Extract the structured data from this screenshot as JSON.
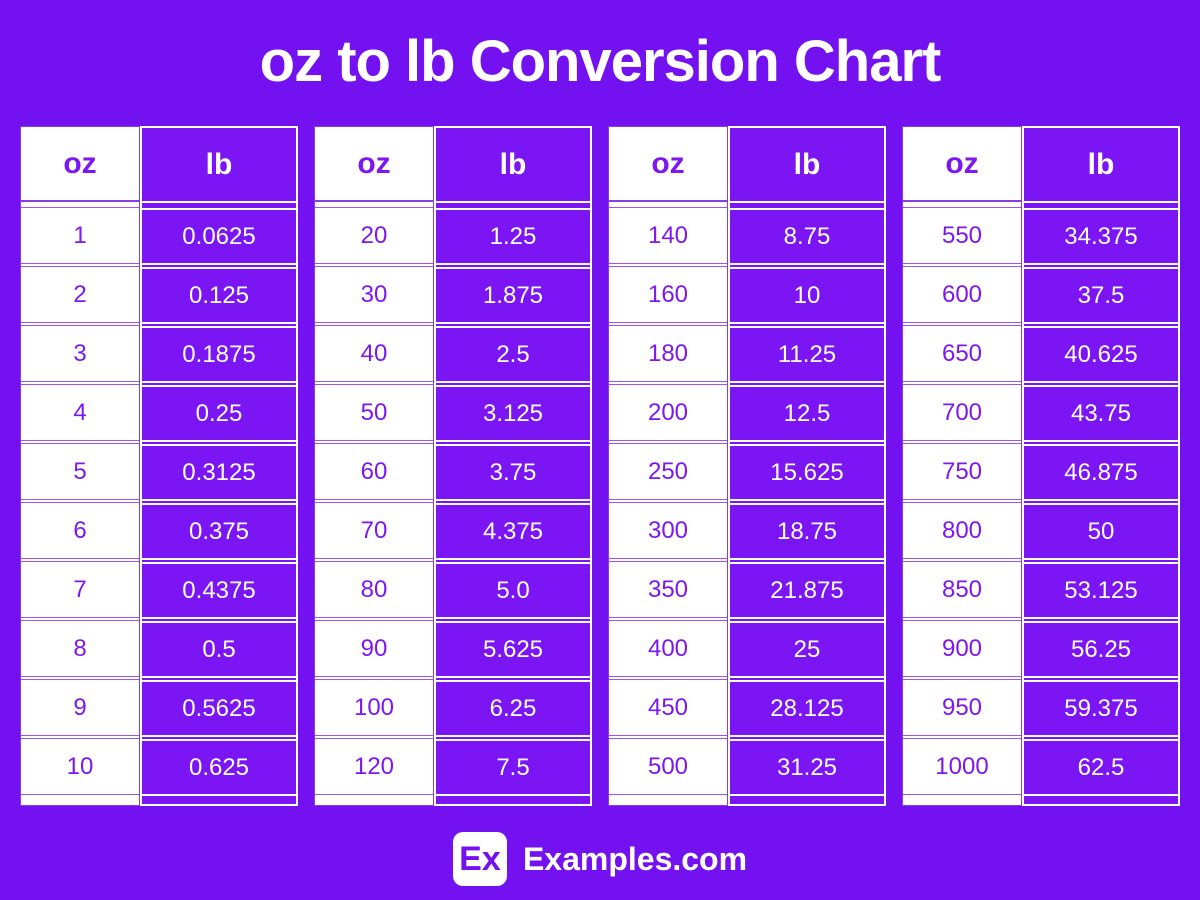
{
  "title": "oz to lb Conversion Chart",
  "footer": {
    "logo_text": "Ex",
    "site_name": "Examples.com"
  },
  "colors": {
    "background": "#7411F1",
    "lb_cell_purple": "#7B15F3",
    "text_purple": "#7D17F2",
    "white": "#FFFFFF"
  },
  "tables": [
    {
      "oz_header": "oz",
      "lb_header": "lb",
      "rows": [
        {
          "oz": "1",
          "lb": "0.0625"
        },
        {
          "oz": "2",
          "lb": "0.125"
        },
        {
          "oz": "3",
          "lb": "0.1875"
        },
        {
          "oz": "4",
          "lb": "0.25"
        },
        {
          "oz": "5",
          "lb": "0.3125"
        },
        {
          "oz": "6",
          "lb": "0.375"
        },
        {
          "oz": "7",
          "lb": "0.4375"
        },
        {
          "oz": "8",
          "lb": "0.5"
        },
        {
          "oz": "9",
          "lb": "0.5625"
        },
        {
          "oz": "10",
          "lb": "0.625"
        }
      ]
    },
    {
      "oz_header": "oz",
      "lb_header": "lb",
      "rows": [
        {
          "oz": "20",
          "lb": "1.25"
        },
        {
          "oz": "30",
          "lb": "1.875"
        },
        {
          "oz": "40",
          "lb": "2.5"
        },
        {
          "oz": "50",
          "lb": "3.125"
        },
        {
          "oz": "60",
          "lb": "3.75"
        },
        {
          "oz": "70",
          "lb": "4.375"
        },
        {
          "oz": "80",
          "lb": "5.0"
        },
        {
          "oz": "90",
          "lb": "5.625"
        },
        {
          "oz": "100",
          "lb": "6.25"
        },
        {
          "oz": "120",
          "lb": "7.5"
        }
      ]
    },
    {
      "oz_header": "oz",
      "lb_header": "lb",
      "rows": [
        {
          "oz": "140",
          "lb": "8.75"
        },
        {
          "oz": "160",
          "lb": "10"
        },
        {
          "oz": "180",
          "lb": "11.25"
        },
        {
          "oz": "200",
          "lb": "12.5"
        },
        {
          "oz": "250",
          "lb": "15.625"
        },
        {
          "oz": "300",
          "lb": "18.75"
        },
        {
          "oz": "350",
          "lb": "21.875"
        },
        {
          "oz": "400",
          "lb": "25"
        },
        {
          "oz": "450",
          "lb": "28.125"
        },
        {
          "oz": "500",
          "lb": "31.25"
        }
      ]
    },
    {
      "oz_header": "oz",
      "lb_header": "lb",
      "rows": [
        {
          "oz": "550",
          "lb": "34.375"
        },
        {
          "oz": "600",
          "lb": "37.5"
        },
        {
          "oz": "650",
          "lb": "40.625"
        },
        {
          "oz": "700",
          "lb": "43.75"
        },
        {
          "oz": "750",
          "lb": "46.875"
        },
        {
          "oz": "800",
          "lb": "50"
        },
        {
          "oz": "850",
          "lb": "53.125"
        },
        {
          "oz": "900",
          "lb": "56.25"
        },
        {
          "oz": "950",
          "lb": "59.375"
        },
        {
          "oz": "1000",
          "lb": "62.5"
        }
      ]
    }
  ],
  "chart_data": {
    "type": "table",
    "title": "oz to lb Conversion Chart",
    "columns": [
      "oz",
      "lb"
    ],
    "groups": [
      [
        [
          1,
          0.0625
        ],
        [
          2,
          0.125
        ],
        [
          3,
          0.1875
        ],
        [
          4,
          0.25
        ],
        [
          5,
          0.3125
        ],
        [
          6,
          0.375
        ],
        [
          7,
          0.4375
        ],
        [
          8,
          0.5
        ],
        [
          9,
          0.5625
        ],
        [
          10,
          0.625
        ]
      ],
      [
        [
          20,
          1.25
        ],
        [
          30,
          1.875
        ],
        [
          40,
          2.5
        ],
        [
          50,
          3.125
        ],
        [
          60,
          3.75
        ],
        [
          70,
          4.375
        ],
        [
          80,
          5.0
        ],
        [
          90,
          5.625
        ],
        [
          100,
          6.25
        ],
        [
          120,
          7.5
        ]
      ],
      [
        [
          140,
          8.75
        ],
        [
          160,
          10
        ],
        [
          180,
          11.25
        ],
        [
          200,
          12.5
        ],
        [
          250,
          15.625
        ],
        [
          300,
          18.75
        ],
        [
          350,
          21.875
        ],
        [
          400,
          25
        ],
        [
          450,
          28.125
        ],
        [
          500,
          31.25
        ]
      ],
      [
        [
          550,
          34.375
        ],
        [
          600,
          37.5
        ],
        [
          650,
          40.625
        ],
        [
          700,
          43.75
        ],
        [
          750,
          46.875
        ],
        [
          800,
          50
        ],
        [
          850,
          53.125
        ],
        [
          900,
          56.25
        ],
        [
          950,
          59.375
        ],
        [
          1000,
          62.5
        ]
      ]
    ]
  }
}
